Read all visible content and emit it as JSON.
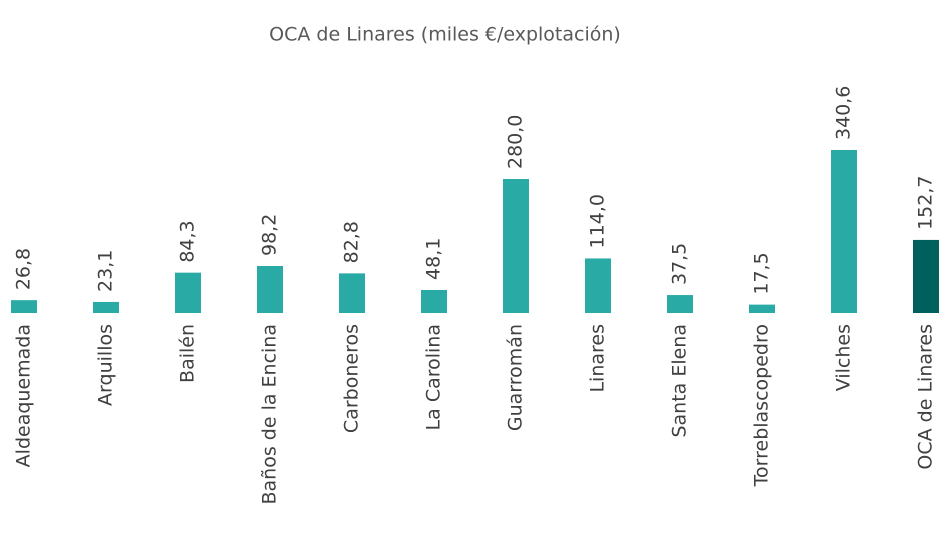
{
  "chart_data": {
    "type": "bar",
    "title": "OCA de Linares (miles €/explotación)",
    "categories": [
      "Aldeaquemada",
      "Arquillos",
      "Bailén",
      "Baños de la Encina",
      "Carboneros",
      "La Carolina",
      "Guarromán",
      "Linares",
      "Santa Elena",
      "Torreblascopedro",
      "Vilches",
      "OCA de Linares"
    ],
    "values": [
      26.8,
      23.1,
      84.3,
      98.2,
      82.8,
      48.1,
      280.0,
      114.0,
      37.5,
      17.5,
      340.6,
      152.7
    ],
    "value_labels": [
      "26,8",
      "23,1",
      "84,3",
      "98,2",
      "82,8",
      "48,1",
      "280,0",
      "114,0",
      "37,5",
      "17,5",
      "340,6",
      "152,7"
    ],
    "colors": [
      "#2aaaa5",
      "#2aaaa5",
      "#2aaaa5",
      "#2aaaa5",
      "#2aaaa5",
      "#2aaaa5",
      "#2aaaa5",
      "#2aaaa5",
      "#2aaaa5",
      "#2aaaa5",
      "#2aaaa5",
      "#00605e"
    ]
  }
}
